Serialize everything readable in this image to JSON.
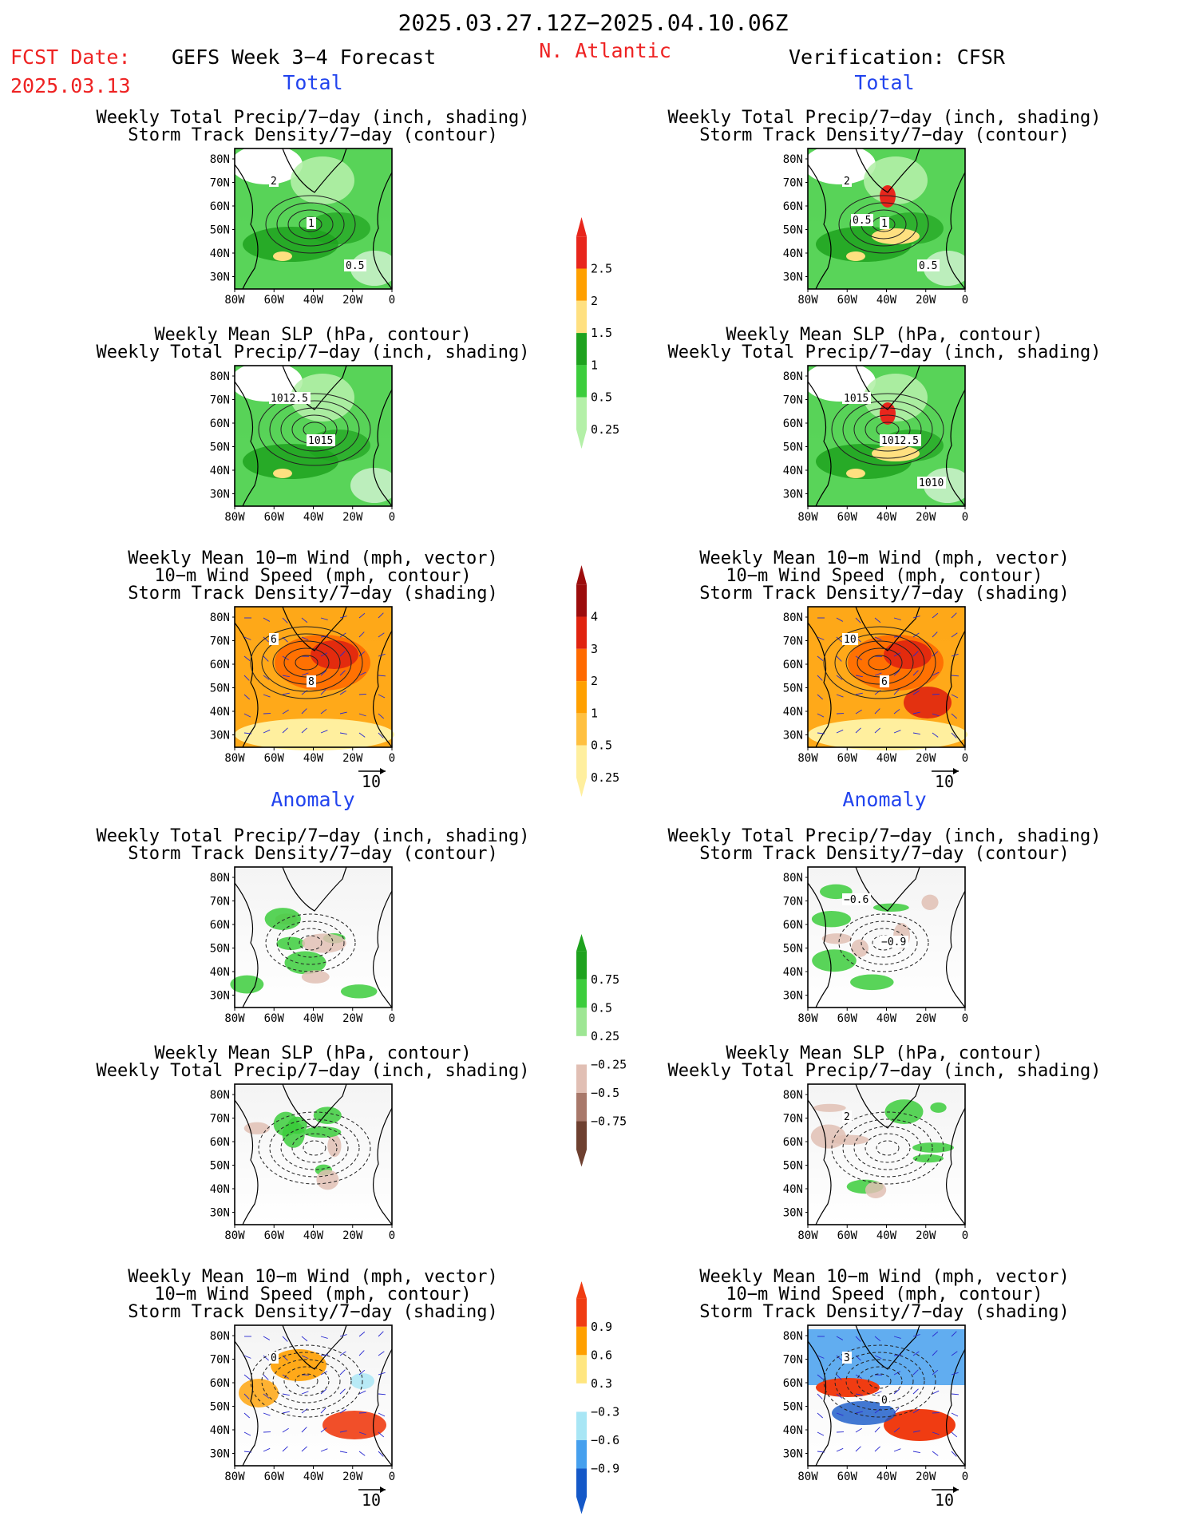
{
  "header": {
    "date_range": "2025.03.27.12Z−2025.04.10.06Z",
    "fcst_label": "FCST Date:",
    "fcst_date": "2025.03.13",
    "forecast_title": "GEFS Week 3−4 Forecast",
    "region": "N. Atlantic",
    "verification": "Verification: CFSR"
  },
  "sections": {
    "total": "Total",
    "anomaly": "Anomaly"
  },
  "panel_types": {
    "precip_storm": [
      "Weekly Total Precip/7−day (inch, shading)",
      "Storm Track Density/7−day (contour)"
    ],
    "slp_precip": [
      "Weekly Mean SLP (hPa, contour)",
      "Weekly Total Precip/7−day (inch, shading)"
    ],
    "wind_storm": [
      "Weekly Mean 10−m Wind (mph, vector)",
      "10−m Wind Speed (mph, contour)",
      "Storm Track Density/7−day (shading)"
    ]
  },
  "axes": {
    "lat_labels": [
      "80N",
      "70N",
      "60N",
      "50N",
      "40N",
      "30N"
    ],
    "lon_labels": [
      "80W",
      "60W",
      "40W",
      "20W",
      "0"
    ]
  },
  "vector_reference": "10",
  "contour_labels": {
    "total_precip_fcst": [
      "2",
      "1",
      "0.5"
    ],
    "total_precip_obs": [
      "2",
      "1",
      "0.5",
      "0.5"
    ],
    "total_slp_fcst": [
      "1012.5",
      "1015"
    ],
    "total_slp_obs": [
      "1015",
      "1012.5",
      "1010"
    ],
    "total_wind_fcst": [
      "6",
      "8"
    ],
    "total_wind_obs": [
      "10",
      "6"
    ],
    "anom_precip_obs": [
      "−0.6",
      "−0.9"
    ],
    "anom_slp_obs": [
      "2"
    ],
    "anom_wind_fcst": [
      "0"
    ],
    "anom_wind_obs": [
      "3",
      "0"
    ]
  },
  "colorbars": {
    "total_precip": {
      "labels": [
        "2.5",
        "2",
        "1.5",
        "1",
        "0.5",
        "0.25"
      ],
      "colors": [
        "#e8261c",
        "#ffa000",
        "#ffe080",
        "#1ea21e",
        "#3ccd3c",
        "#b4f0a8"
      ]
    },
    "total_storm": {
      "labels": [
        "4",
        "3",
        "2",
        "1",
        "0.5",
        "0.25"
      ],
      "colors": [
        "#9c0c0c",
        "#e0230f",
        "#ff6a00",
        "#ffa000",
        "#ffc040",
        "#ffef9e"
      ]
    },
    "anom_precip": {
      "labels": [
        "0.75",
        "0.5",
        "0.25",
        "−0.25",
        "−0.5",
        "−0.75"
      ],
      "colors": [
        "#1ea21e",
        "#3ccd3c",
        "#9ee694",
        "#ffffff",
        "#e1bfb4",
        "#a8786a",
        "#6e4030"
      ]
    },
    "anom_storm": {
      "labels": [
        "0.9",
        "0.6",
        "0.3",
        "−0.3",
        "−0.6",
        "−0.9"
      ],
      "colors": [
        "#f03c12",
        "#ffa000",
        "#ffe680",
        "#ffffff",
        "#a8e6f5",
        "#46a0ee",
        "#1458c8"
      ]
    }
  }
}
